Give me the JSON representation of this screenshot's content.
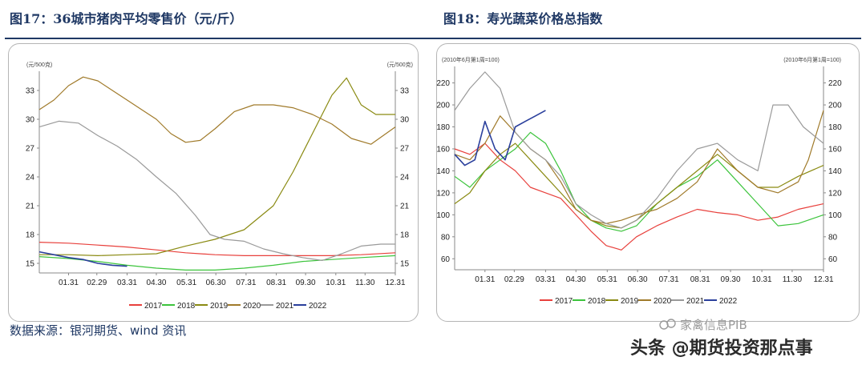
{
  "figures": {
    "left_title": "图17：36城市猪肉平均零售价（元/斤）",
    "right_title": "图18：寿光蔬菜价格总指数"
  },
  "source": "数据来源：银河期货、wind 资讯",
  "watermarks": {
    "line1": "家禽信息PIB",
    "line2": "头条 @期货投资那点事"
  },
  "colors": {
    "2017": "#e8403c",
    "2018": "#3cc43c",
    "2019": "#8a8a12",
    "2020": "#a07a2a",
    "2021": "#9a9a9a",
    "2022": "#2a3f9c"
  },
  "chart_data": [
    {
      "type": "line",
      "title": "图17：36城市猪肉平均零售价（元/斤）",
      "unit_left": "(元/500克)",
      "unit_right": "(元/500克)",
      "ylim": [
        14,
        35
      ],
      "yticks": [
        15,
        18,
        21,
        24,
        27,
        30,
        33
      ],
      "xlim": [
        0,
        365
      ],
      "xticks": [
        "01.31",
        "02.29",
        "03.31",
        "04.30",
        "05.31",
        "06.30",
        "07.31",
        "08.31",
        "09.30",
        "10.31",
        "11.30",
        "12.31"
      ],
      "xtick_days": [
        30,
        59,
        90,
        120,
        151,
        181,
        212,
        243,
        273,
        304,
        334,
        365
      ],
      "legend": [
        "2017",
        "2018",
        "2019",
        "2020",
        "2021",
        "2022"
      ],
      "series": [
        {
          "name": "2017",
          "x": [
            0,
            30,
            60,
            90,
            120,
            150,
            180,
            210,
            240,
            270,
            300,
            330,
            365
          ],
          "y": [
            17.2,
            17.1,
            16.9,
            16.7,
            16.4,
            16.1,
            15.9,
            15.8,
            15.8,
            15.8,
            15.8,
            15.9,
            16.1
          ]
        },
        {
          "name": "2018",
          "x": [
            0,
            30,
            60,
            90,
            120,
            150,
            180,
            210,
            240,
            270,
            300,
            330,
            365
          ],
          "y": [
            15.7,
            15.5,
            15.2,
            14.8,
            14.5,
            14.3,
            14.3,
            14.5,
            14.8,
            15.2,
            15.4,
            15.6,
            15.8
          ]
        },
        {
          "name": "2019",
          "x": [
            0,
            30,
            60,
            90,
            120,
            150,
            180,
            210,
            240,
            260,
            280,
            300,
            315,
            330,
            345,
            365
          ],
          "y": [
            15.9,
            15.9,
            15.8,
            15.9,
            16.0,
            16.8,
            17.5,
            18.5,
            21.0,
            24.5,
            28.5,
            32.5,
            34.3,
            31.5,
            30.5,
            30.5
          ]
        },
        {
          "name": "2020",
          "x": [
            0,
            15,
            30,
            45,
            60,
            75,
            90,
            105,
            120,
            135,
            150,
            165,
            180,
            200,
            220,
            240,
            260,
            280,
            300,
            320,
            340,
            365
          ],
          "y": [
            31.0,
            32.0,
            33.5,
            34.4,
            34.0,
            33.0,
            32.0,
            31.0,
            30.0,
            28.5,
            27.6,
            27.8,
            29.0,
            30.8,
            31.5,
            31.5,
            31.2,
            30.5,
            29.5,
            28.0,
            27.4,
            29.2
          ]
        },
        {
          "name": "2021",
          "x": [
            0,
            20,
            40,
            60,
            80,
            100,
            120,
            140,
            160,
            175,
            190,
            210,
            230,
            250,
            270,
            290,
            310,
            330,
            350,
            365
          ],
          "y": [
            29.2,
            29.8,
            29.6,
            28.3,
            27.2,
            25.8,
            24.0,
            22.3,
            20.0,
            18.0,
            17.5,
            17.3,
            16.5,
            16.0,
            15.6,
            15.3,
            16.0,
            16.8,
            17.0,
            17.0
          ]
        },
        {
          "name": "2022",
          "x": [
            0,
            15,
            30,
            45,
            60,
            75,
            90
          ],
          "y": [
            16.2,
            15.9,
            15.6,
            15.4,
            15.0,
            14.8,
            14.7
          ]
        }
      ]
    },
    {
      "type": "line",
      "title": "图18：寿光蔬菜价格总指数",
      "unit_left": "(2010年6月第1周=100)",
      "unit_right": "(2010年6月第1周=100)",
      "ylim": [
        50,
        235
      ],
      "yticks": [
        60,
        80,
        100,
        120,
        140,
        160,
        180,
        200,
        220
      ],
      "xlim": [
        0,
        365
      ],
      "xticks": [
        "01.31",
        "02.29",
        "03.31",
        "04.30",
        "05.31",
        "06.30",
        "07.31",
        "08.31",
        "09.30",
        "10.31",
        "11.30",
        "12.31"
      ],
      "xtick_days": [
        30,
        59,
        90,
        120,
        151,
        181,
        212,
        243,
        273,
        304,
        334,
        365
      ],
      "legend": [
        "2017",
        "2018",
        "2019",
        "2020",
        "2021",
        "2022"
      ],
      "series": [
        {
          "name": "2017",
          "x": [
            0,
            15,
            30,
            45,
            60,
            75,
            90,
            105,
            120,
            135,
            150,
            165,
            180,
            200,
            220,
            240,
            260,
            280,
            300,
            320,
            340,
            365
          ],
          "y": [
            160,
            155,
            165,
            150,
            140,
            125,
            120,
            115,
            100,
            85,
            72,
            68,
            80,
            90,
            98,
            105,
            102,
            100,
            95,
            98,
            105,
            110
          ]
        },
        {
          "name": "2018",
          "x": [
            0,
            15,
            30,
            45,
            60,
            75,
            90,
            105,
            120,
            135,
            150,
            165,
            180,
            200,
            220,
            240,
            260,
            280,
            300,
            320,
            340,
            365
          ],
          "y": [
            135,
            125,
            140,
            150,
            160,
            175,
            165,
            140,
            110,
            95,
            88,
            85,
            90,
            110,
            125,
            135,
            150,
            130,
            110,
            90,
            92,
            100
          ]
        },
        {
          "name": "2019",
          "x": [
            0,
            15,
            30,
            45,
            60,
            75,
            90,
            105,
            120,
            135,
            150,
            165,
            180,
            200,
            220,
            240,
            260,
            280,
            300,
            320,
            340,
            365
          ],
          "y": [
            110,
            120,
            140,
            155,
            165,
            150,
            135,
            120,
            105,
            95,
            90,
            88,
            95,
            110,
            125,
            140,
            155,
            140,
            125,
            125,
            135,
            145
          ]
        },
        {
          "name": "2020",
          "x": [
            0,
            15,
            30,
            45,
            60,
            75,
            90,
            105,
            120,
            135,
            150,
            165,
            180,
            200,
            220,
            240,
            260,
            280,
            300,
            320,
            340,
            350,
            365
          ],
          "y": [
            155,
            150,
            165,
            190,
            175,
            160,
            150,
            130,
            105,
            95,
            92,
            95,
            100,
            105,
            115,
            130,
            160,
            140,
            125,
            120,
            130,
            150,
            195
          ]
        },
        {
          "name": "2021",
          "x": [
            0,
            15,
            30,
            45,
            60,
            75,
            90,
            105,
            120,
            135,
            150,
            165,
            180,
            200,
            220,
            240,
            260,
            280,
            300,
            315,
            330,
            345,
            365
          ],
          "y": [
            195,
            215,
            230,
            215,
            175,
            160,
            150,
            135,
            110,
            100,
            92,
            88,
            95,
            115,
            140,
            160,
            165,
            150,
            140,
            200,
            200,
            180,
            165
          ]
        },
        {
          "name": "2022",
          "x": [
            0,
            10,
            20,
            30,
            40,
            50,
            60,
            70,
            80,
            90
          ],
          "y": [
            155,
            145,
            150,
            185,
            160,
            150,
            180,
            185,
            190,
            195
          ]
        }
      ]
    }
  ]
}
